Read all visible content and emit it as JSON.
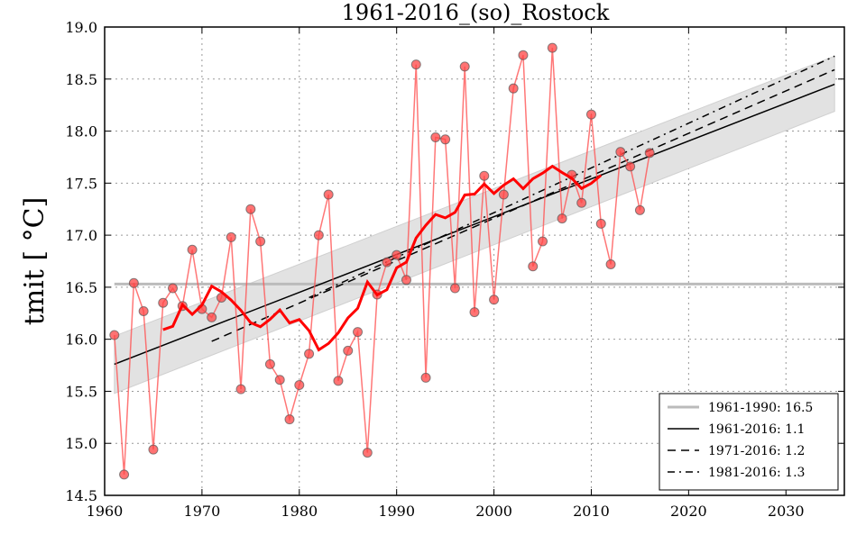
{
  "chart_data": {
    "type": "line",
    "title": "1961-2016_(so)_Rostock",
    "xlabel": "",
    "ylabel": "tmit [ $^\\circ$C]",
    "ylabel_display": "tmit [ °C]",
    "xlim": [
      1960,
      2036
    ],
    "ylim": [
      14.5,
      19.0
    ],
    "xticks": [
      "1960",
      "1970",
      "1980",
      "1990",
      "2000",
      "2010",
      "2020",
      "2030"
    ],
    "yticks": [
      "14.5",
      "15.0",
      "15.5",
      "16.0",
      "16.5",
      "17.0",
      "17.5",
      "18.0",
      "18.5",
      "19.0"
    ],
    "grid": true,
    "legend_position": "bottom-right",
    "colors": {
      "points": "#ff5555",
      "running_mean": "#ff0000",
      "reference": "#bbbbbb",
      "trend": "#000000",
      "band": "#e2e2e2"
    },
    "years": [
      1961,
      1962,
      1963,
      1964,
      1965,
      1966,
      1967,
      1968,
      1969,
      1970,
      1971,
      1972,
      1973,
      1974,
      1975,
      1976,
      1977,
      1978,
      1979,
      1980,
      1981,
      1982,
      1983,
      1984,
      1985,
      1986,
      1987,
      1988,
      1989,
      1990,
      1991,
      1992,
      1993,
      1994,
      1995,
      1996,
      1997,
      1998,
      1999,
      2000,
      2001,
      2002,
      2003,
      2004,
      2005,
      2006,
      2007,
      2008,
      2009,
      2010,
      2011,
      2012,
      2013,
      2014,
      2015,
      2016
    ],
    "values": [
      16.04,
      14.7,
      16.54,
      16.27,
      14.94,
      16.35,
      16.49,
      16.32,
      16.86,
      16.29,
      16.21,
      16.4,
      16.98,
      15.52,
      17.25,
      16.94,
      15.76,
      15.61,
      15.23,
      15.56,
      15.86,
      17.0,
      17.39,
      15.6,
      15.89,
      16.07,
      14.91,
      16.43,
      16.74,
      16.81,
      16.57,
      18.64,
      15.63,
      17.94,
      17.92,
      16.49,
      18.62,
      16.26,
      17.57,
      16.38,
      17.39,
      18.41,
      18.73,
      16.7,
      16.94,
      18.8,
      17.16,
      17.58,
      17.31,
      18.16,
      17.11,
      16.72,
      17.8,
      17.66,
      17.24,
      17.79
    ],
    "running_mean_window": 11,
    "reference": {
      "label": "1961-1990: 16.5",
      "value": 16.53,
      "x": [
        1961,
        2036
      ]
    },
    "trends": [
      {
        "label": "1961-2016: 1.1",
        "style": "solid",
        "x": [
          1961,
          2035
        ],
        "y": [
          15.76,
          18.45
        ]
      },
      {
        "label": "1971-2016: 1.2",
        "style": "dashed",
        "x": [
          1971,
          2035
        ],
        "y": [
          15.98,
          18.59
        ]
      },
      {
        "label": "1981-2016: 1.3",
        "style": "dashdot",
        "x": [
          1981,
          2035
        ],
        "y": [
          16.4,
          18.72
        ]
      }
    ],
    "band": {
      "x": [
        1961,
        2035
      ],
      "lower": [
        15.48,
        18.19
      ],
      "upper": [
        16.03,
        18.72
      ]
    }
  }
}
